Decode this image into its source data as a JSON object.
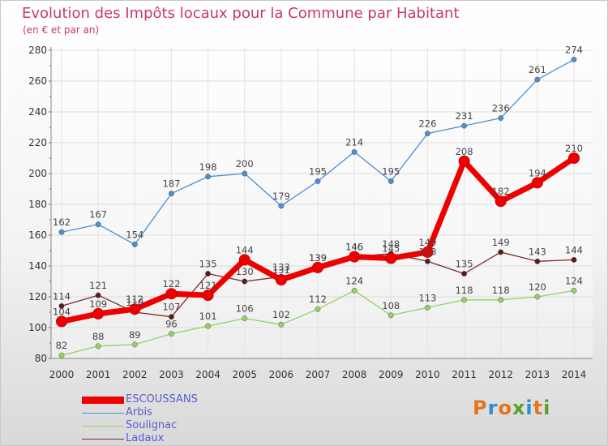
{
  "header": {
    "title": "Evolution des Impôts locaux pour la Commune par Habitant",
    "subtitle": "(en € et par an)"
  },
  "logo": {
    "text": "Proxiti",
    "colors": [
      "#e8731f",
      "#2a8fd0",
      "#e8731f",
      "#5aa02c",
      "#2a8fd0",
      "#e8731f",
      "#5aa02c"
    ]
  },
  "chart_data": {
    "type": "line",
    "title": "Evolution des Impôts locaux pour la Commune par Habitant",
    "subtitle": "(en € et par an)",
    "xlabel": "",
    "ylabel": "",
    "x": [
      "2000",
      "2001",
      "2002",
      "2003",
      "2004",
      "2005",
      "2006",
      "2007",
      "2008",
      "2009",
      "2010",
      "2011",
      "2012",
      "2013",
      "2014"
    ],
    "ylim": [
      80,
      280
    ],
    "yticks": [
      80,
      100,
      120,
      140,
      160,
      180,
      200,
      220,
      240,
      260,
      280
    ],
    "grid": true,
    "legend_position": "bottom-left",
    "series": [
      {
        "name": "Arbis",
        "color": "#4a8fd1",
        "values": [
          162,
          167,
          154,
          187,
          198,
          200,
          179,
          195,
          214,
          195,
          226,
          231,
          236,
          261,
          274
        ]
      },
      {
        "name": "Soulignac",
        "color": "#8fd460",
        "values": [
          82,
          88,
          89,
          96,
          101,
          106,
          102,
          112,
          124,
          108,
          113,
          118,
          118,
          120,
          124
        ]
      },
      {
        "name": "Ladaux",
        "color": "#7a2a2a",
        "values": [
          114,
          121,
          110,
          107,
          135,
          130,
          133,
          139,
          146,
          148,
          143,
          135,
          149,
          143,
          144
        ]
      },
      {
        "name": "ESCOUSSANS",
        "color": "#ee0000",
        "values": [
          104,
          109,
          112,
          122,
          121,
          144,
          131,
          139,
          146,
          145,
          149,
          208,
          182,
          194,
          210
        ]
      }
    ]
  }
}
